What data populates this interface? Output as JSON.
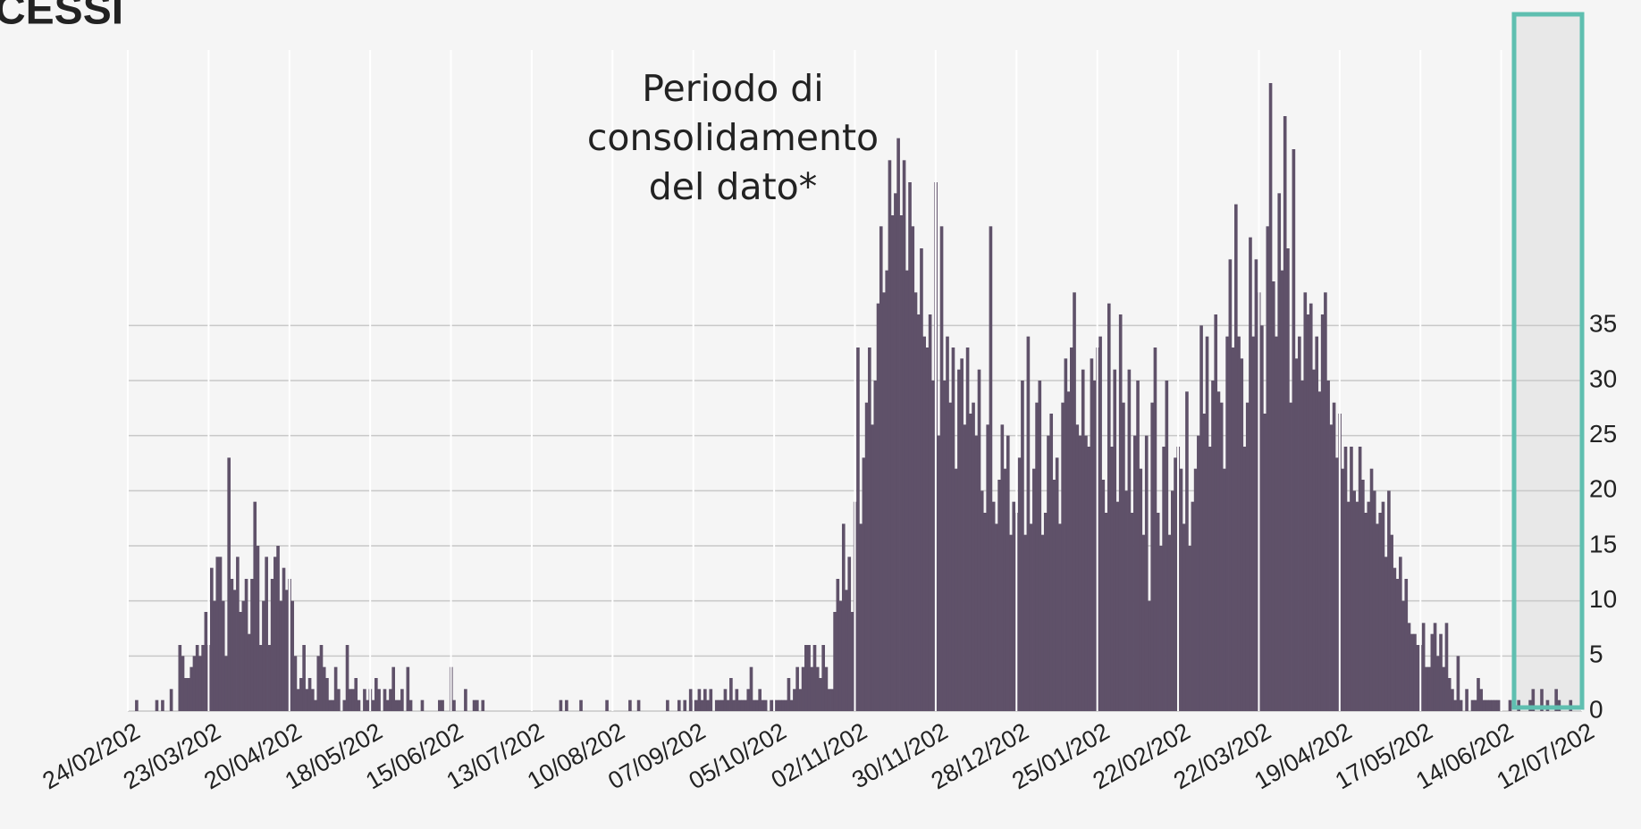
{
  "chart_data": {
    "type": "bar",
    "title": "CESSI",
    "annotation": [
      "Periodo di",
      "consolidamento",
      "del dato*"
    ],
    "color": "#5f5169",
    "grid": true,
    "ylim": [
      0,
      60
    ],
    "yticks": [
      0,
      5,
      10,
      15,
      20,
      25,
      30,
      35
    ],
    "categories": [
      "24/02/202",
      null,
      null,
      null,
      null,
      null,
      null,
      null,
      null,
      null,
      null,
      null,
      null,
      null,
      null,
      null,
      null,
      null,
      null,
      null,
      null,
      null,
      null,
      null,
      null,
      null,
      null,
      null,
      "23/03/202",
      null,
      null,
      null,
      null,
      null,
      null,
      null,
      null,
      null,
      null,
      null,
      null,
      null,
      null,
      null,
      null,
      null,
      null,
      null,
      null,
      null,
      null,
      null,
      null,
      null,
      null,
      null,
      "20/04/202",
      null,
      null,
      null,
      null,
      null,
      null,
      null,
      null,
      null,
      null,
      null,
      null,
      null,
      null,
      null,
      null,
      null,
      null,
      null,
      null,
      null,
      null,
      null,
      null,
      null,
      null,
      null,
      "18/05/202",
      null,
      null,
      null,
      null,
      null,
      null,
      null,
      null,
      null,
      null,
      null,
      null,
      null,
      null,
      null,
      null,
      null,
      null,
      null,
      null,
      null,
      null,
      null,
      null,
      null,
      null,
      null,
      "15/06/202",
      null,
      null,
      null,
      null,
      null,
      null,
      null,
      null,
      null,
      null,
      null,
      null,
      null,
      null,
      null,
      null,
      null,
      null,
      null,
      null,
      null,
      null,
      null,
      null,
      null,
      null,
      null,
      "13/07/202",
      null,
      null,
      null,
      null,
      null,
      null,
      null,
      null,
      null,
      null,
      null,
      null,
      null,
      null,
      null,
      null,
      null,
      null,
      null,
      null,
      null,
      null,
      null,
      null,
      null,
      null,
      null,
      "10/08/202",
      null,
      null,
      null,
      null,
      null,
      null,
      null,
      null,
      null,
      null,
      null,
      null,
      null,
      null,
      null,
      null,
      null,
      null,
      null,
      null,
      null,
      null,
      null,
      null,
      null,
      null,
      null,
      "07/09/202",
      null,
      null,
      null,
      null,
      null,
      null,
      null,
      null,
      null,
      null,
      null,
      null,
      null,
      null,
      null,
      null,
      null,
      null,
      null,
      null,
      null,
      null,
      null,
      null,
      null,
      null,
      null,
      "05/10/202",
      null,
      null,
      null,
      null,
      null,
      null,
      null,
      null,
      null,
      null,
      null,
      null,
      null,
      null,
      null,
      null,
      null,
      null,
      null,
      null,
      null,
      null,
      null,
      null,
      null,
      null,
      null,
      "02/11/202",
      null,
      null,
      null,
      null,
      null,
      null,
      null,
      null,
      null,
      null,
      null,
      null,
      null,
      null,
      null,
      null,
      null,
      null,
      null,
      null,
      null,
      null,
      null,
      null,
      null,
      null,
      null,
      "30/11/202",
      null,
      null,
      null,
      null,
      null,
      null,
      null,
      null,
      null,
      null,
      null,
      null,
      null,
      null,
      null,
      null,
      null,
      null,
      null,
      null,
      null,
      null,
      null,
      null,
      null,
      null,
      null,
      "28/12/202",
      null,
      null,
      null,
      null,
      null,
      null,
      null,
      null,
      null,
      null,
      null,
      null,
      null,
      null,
      null,
      null,
      null,
      null,
      null,
      null,
      null,
      null,
      null,
      null,
      null,
      null,
      null,
      "25/01/202",
      null,
      null,
      null,
      null,
      null,
      null,
      null,
      null,
      null,
      null,
      null,
      null,
      null,
      null,
      null,
      null,
      null,
      null,
      null,
      null,
      null,
      null,
      null,
      null,
      null,
      null,
      null,
      "22/02/202",
      null,
      null,
      null,
      null,
      null,
      null,
      null,
      null,
      null,
      null,
      null,
      null,
      null,
      null,
      null,
      null,
      null,
      null,
      null,
      null,
      null,
      null,
      null,
      null,
      null,
      null,
      null,
      "22/03/202",
      null,
      null,
      null,
      null,
      null,
      null,
      null,
      null,
      null,
      null,
      null,
      null,
      null,
      null,
      null,
      null,
      null,
      null,
      null,
      null,
      null,
      null,
      null,
      null,
      null,
      null,
      null,
      "19/04/202",
      null,
      null,
      null,
      null,
      null,
      null,
      null,
      null,
      null,
      null,
      null,
      null,
      null,
      null,
      null,
      null,
      null,
      null,
      null,
      null,
      null,
      null,
      null,
      null,
      null,
      null,
      null,
      "17/05/202",
      null,
      null,
      null,
      null,
      null,
      null,
      null,
      null,
      null,
      null,
      null,
      null,
      null,
      null,
      null,
      null,
      null,
      null,
      null,
      null,
      null,
      null,
      null,
      null,
      null,
      null,
      null,
      "14/06/202",
      null,
      null,
      null,
      null,
      null,
      null,
      null,
      null,
      null,
      null,
      null,
      null,
      null,
      null,
      null,
      null,
      null,
      null,
      null,
      null,
      null,
      null,
      null,
      null,
      null,
      null,
      null,
      "12/07/202"
    ],
    "values": [
      0,
      0,
      0,
      1,
      0,
      0,
      0,
      0,
      0,
      0,
      1,
      0,
      1,
      0,
      0,
      2,
      0,
      0,
      6,
      5,
      3,
      3,
      4,
      5,
      6,
      5,
      6,
      9,
      6,
      13,
      10,
      14,
      14,
      10,
      5,
      23,
      12,
      11,
      14,
      9,
      10,
      12,
      7,
      12,
      19,
      15,
      6,
      10,
      14,
      6,
      12,
      14,
      15,
      10,
      13,
      11,
      12,
      10,
      5,
      2,
      3,
      6,
      2,
      3,
      2,
      1,
      5,
      6,
      4,
      3,
      1,
      1,
      4,
      2,
      0,
      1,
      6,
      2,
      2,
      3,
      1,
      0,
      2,
      1,
      2,
      1,
      3,
      2,
      0,
      2,
      1,
      2,
      4,
      1,
      1,
      2,
      0,
      4,
      1,
      0,
      0,
      0,
      1,
      0,
      0,
      0,
      0,
      0,
      1,
      1,
      0,
      0,
      4,
      1,
      0,
      0,
      0,
      2,
      0,
      0,
      1,
      1,
      0,
      1,
      0,
      0,
      0,
      0,
      0,
      0,
      0,
      0,
      0,
      0,
      0,
      0,
      0,
      0,
      0,
      0,
      0,
      0,
      0,
      0,
      0,
      0,
      0,
      0,
      0,
      0,
      1,
      0,
      1,
      0,
      0,
      0,
      0,
      1,
      0,
      0,
      0,
      0,
      0,
      0,
      0,
      0,
      1,
      0,
      0,
      0,
      0,
      0,
      0,
      0,
      1,
      0,
      0,
      1,
      0,
      0,
      0,
      0,
      0,
      0,
      0,
      0,
      0,
      1,
      0,
      0,
      0,
      1,
      0,
      1,
      0,
      2,
      1,
      1,
      2,
      1,
      2,
      1,
      2,
      0,
      1,
      1,
      1,
      2,
      1,
      3,
      1,
      2,
      1,
      1,
      1,
      2,
      4,
      1,
      1,
      2,
      1,
      1,
      0,
      1,
      1,
      1,
      1,
      1,
      1,
      3,
      1,
      2,
      4,
      2,
      4,
      6,
      6,
      4,
      6,
      4,
      3,
      6,
      4,
      2,
      2,
      9,
      12,
      10,
      17,
      11,
      14,
      9,
      19,
      33,
      17,
      23,
      28,
      33,
      26,
      30,
      37,
      44,
      38,
      40,
      50,
      45,
      47,
      52,
      45,
      50,
      40,
      48,
      44,
      38,
      36,
      42,
      34,
      33,
      36,
      30,
      48,
      25,
      44,
      30,
      34,
      28,
      33,
      22,
      31,
      32,
      26,
      33,
      27,
      28,
      25,
      31,
      20,
      18,
      26,
      44,
      19,
      17,
      21,
      26,
      22,
      25,
      16,
      19,
      18,
      23,
      30,
      16,
      34,
      17,
      22,
      28,
      30,
      16,
      18,
      25,
      27,
      21,
      23,
      17,
      28,
      32,
      29,
      33,
      38,
      26,
      25,
      31,
      25,
      24,
      32,
      30,
      33,
      34,
      21,
      18,
      37,
      24,
      31,
      19,
      36,
      28,
      20,
      31,
      18,
      25,
      30,
      22,
      16,
      25,
      10,
      28,
      33,
      18,
      15,
      24,
      30,
      16,
      20,
      23,
      24,
      22,
      17,
      29,
      15,
      19,
      22,
      25,
      35,
      27,
      34,
      24,
      30,
      36,
      29,
      28,
      22,
      34,
      41,
      33,
      46,
      34,
      32,
      24,
      28,
      43,
      34,
      41,
      38,
      35,
      27,
      44,
      57,
      39,
      34,
      47,
      40,
      54,
      42,
      28,
      51,
      32,
      34,
      30,
      38,
      36,
      37,
      31,
      34,
      29,
      36,
      38,
      30,
      26,
      28,
      23,
      27,
      22,
      24,
      19,
      24,
      20,
      19,
      24,
      21,
      18,
      19,
      22,
      20,
      17,
      18,
      19,
      14,
      20,
      16,
      13,
      12,
      14,
      10,
      12,
      8,
      7,
      7,
      6,
      6,
      8,
      4,
      4,
      7,
      8,
      5,
      7,
      4,
      8,
      3,
      2,
      1,
      5,
      1,
      0,
      2,
      0,
      1,
      1,
      3,
      2,
      1,
      1,
      1,
      1,
      1,
      1,
      0,
      0,
      0,
      1,
      0,
      0,
      1,
      0,
      0,
      0,
      1,
      2,
      0,
      0,
      2,
      0,
      1,
      0,
      0,
      2,
      1,
      0,
      0,
      0,
      1,
      0,
      0,
      0,
      0
    ]
  }
}
